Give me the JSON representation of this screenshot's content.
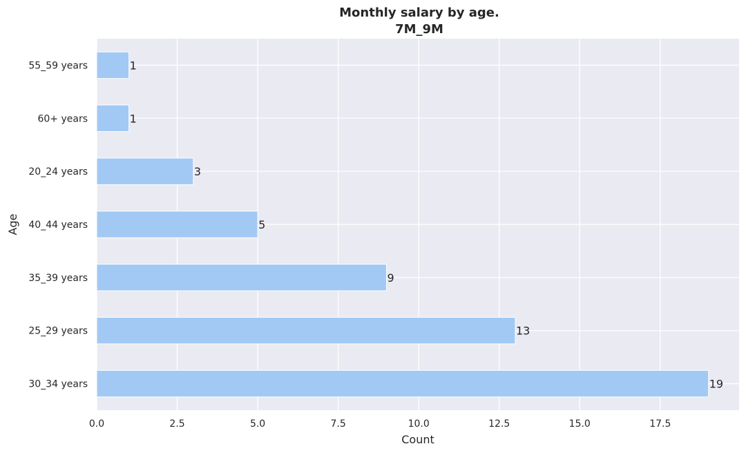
{
  "chart_data": {
    "type": "bar",
    "orientation": "horizontal",
    "title": "Monthly salary by age.",
    "subtitle": "7M_9M",
    "xlabel": "Count",
    "ylabel": "Age",
    "categories": [
      "55_59 years",
      "60+ years",
      "20_24 years",
      "40_44 years",
      "35_39 years",
      "25_29 years",
      "30_34 years"
    ],
    "values": [
      1,
      1,
      3,
      5,
      9,
      13,
      19
    ],
    "xlim": [
      0,
      19.95
    ],
    "xticks": [
      0,
      2.5,
      5,
      7.5,
      10,
      12.5,
      15,
      17.5
    ],
    "xtick_labels": [
      "0.0",
      "2.5",
      "5.0",
      "7.5",
      "10.0",
      "12.5",
      "15.0",
      "17.5"
    ],
    "data_labels": [
      "1",
      "1",
      "3",
      "5",
      "9",
      "13",
      "19"
    ],
    "grid": true,
    "colors": {
      "bar": "#a1c9f4",
      "background": "#eaeaf2",
      "grid": "#ffffff",
      "text": "#262626"
    }
  }
}
